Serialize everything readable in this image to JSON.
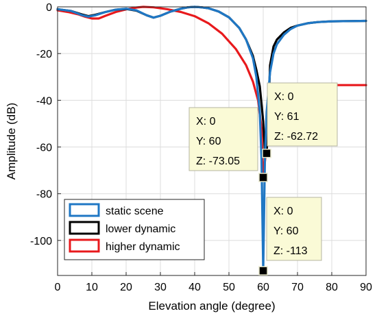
{
  "chart_data": {
    "type": "line",
    "xlabel": "Elevation angle (degree)",
    "ylabel": "Amplitude (dB)",
    "xlim": [
      0,
      90
    ],
    "ylim": [
      -115,
      0
    ],
    "x_ticks": [
      0,
      10,
      20,
      30,
      40,
      50,
      60,
      70,
      80,
      90
    ],
    "y_ticks": [
      0,
      -20,
      -40,
      -60,
      -80,
      -100
    ],
    "grid": true,
    "legend_placement": "bottom-left",
    "series": [
      {
        "name": "static scene",
        "color": "#1f77c4",
        "points": [
          [
            0,
            -1
          ],
          [
            4,
            -1.8
          ],
          [
            7,
            -3.5
          ],
          [
            9,
            -4.2
          ],
          [
            11,
            -3.6
          ],
          [
            14,
            -2.2
          ],
          [
            17,
            -1.2
          ],
          [
            20,
            -0.8
          ],
          [
            23,
            -1.5
          ],
          [
            26,
            -3.6
          ],
          [
            28,
            -4.6
          ],
          [
            30,
            -3.8
          ],
          [
            33,
            -2
          ],
          [
            36,
            -0.8
          ],
          [
            38,
            -0.2
          ],
          [
            40,
            0
          ],
          [
            42,
            -0.2
          ],
          [
            44,
            -0.6
          ],
          [
            47,
            -2
          ],
          [
            50,
            -4.5
          ],
          [
            53,
            -9
          ],
          [
            55,
            -14
          ],
          [
            57,
            -22
          ],
          [
            58,
            -30
          ],
          [
            59,
            -45
          ],
          [
            59.5,
            -65
          ],
          [
            60,
            -113
          ],
          [
            60.5,
            -65
          ],
          [
            61,
            -45
          ],
          [
            62,
            -28
          ],
          [
            63,
            -20
          ],
          [
            64,
            -16
          ],
          [
            66,
            -12
          ],
          [
            68,
            -9.5
          ],
          [
            70,
            -8
          ],
          [
            73,
            -7
          ],
          [
            76,
            -6.5
          ],
          [
            80,
            -6.2
          ],
          [
            85,
            -6.1
          ],
          [
            90,
            -6
          ]
        ]
      },
      {
        "name": "lower dynamic",
        "color": "#000000",
        "points": [
          [
            0,
            -1
          ],
          [
            4,
            -1.8
          ],
          [
            7,
            -3.2
          ],
          [
            9,
            -4
          ],
          [
            11,
            -3.4
          ],
          [
            14,
            -2.2
          ],
          [
            17,
            -1.2
          ],
          [
            20,
            -0.9
          ],
          [
            23,
            -1.6
          ],
          [
            26,
            -3.6
          ],
          [
            28,
            -4.6
          ],
          [
            30,
            -3.8
          ],
          [
            33,
            -2
          ],
          [
            36,
            -0.8
          ],
          [
            38,
            -0.2
          ],
          [
            40,
            0
          ],
          [
            42,
            -0.2
          ],
          [
            44,
            -0.6
          ],
          [
            47,
            -2
          ],
          [
            50,
            -4.5
          ],
          [
            53,
            -9
          ],
          [
            55,
            -14
          ],
          [
            57,
            -21
          ],
          [
            58,
            -27
          ],
          [
            59,
            -34
          ],
          [
            60,
            -49
          ],
          [
            60.5,
            -62
          ],
          [
            61,
            -62.72
          ],
          [
            61.5,
            -45
          ],
          [
            62,
            -25
          ],
          [
            63,
            -17
          ],
          [
            64,
            -14
          ],
          [
            66,
            -11
          ],
          [
            68,
            -9
          ],
          [
            70,
            -8
          ],
          [
            73,
            -7
          ],
          [
            76,
            -6.5
          ],
          [
            80,
            -6.2
          ],
          [
            85,
            -6.1
          ],
          [
            90,
            -6
          ]
        ]
      },
      {
        "name": "higher dynamic",
        "color": "#e8191c",
        "points": [
          [
            0,
            -1.5
          ],
          [
            3,
            -2.2
          ],
          [
            6,
            -3.2
          ],
          [
            8,
            -4.2
          ],
          [
            10,
            -5
          ],
          [
            12,
            -5
          ],
          [
            14,
            -3.8
          ],
          [
            17,
            -2.2
          ],
          [
            20,
            -1.1
          ],
          [
            23,
            -0.3
          ],
          [
            25,
            0
          ],
          [
            28,
            -0.2
          ],
          [
            32,
            -1
          ],
          [
            36,
            -2.2
          ],
          [
            40,
            -4
          ],
          [
            44,
            -7
          ],
          [
            48,
            -11.5
          ],
          [
            52,
            -18
          ],
          [
            55,
            -25
          ],
          [
            57,
            -32
          ],
          [
            58.5,
            -40
          ],
          [
            59.5,
            -52
          ],
          [
            60,
            -73.05
          ],
          [
            60.8,
            -62
          ],
          [
            61.5,
            -57
          ],
          [
            62,
            -54
          ],
          [
            62.5,
            -48
          ],
          [
            63,
            -45
          ],
          [
            63.5,
            -42
          ],
          [
            64,
            -40
          ],
          [
            64.5,
            -37
          ],
          [
            65,
            -34
          ],
          [
            66,
            -33.6
          ],
          [
            68,
            -33.5
          ],
          [
            70,
            -33.5
          ],
          [
            75,
            -33.5
          ],
          [
            80,
            -33.5
          ],
          [
            85,
            -33.5
          ],
          [
            90,
            -33.5
          ]
        ]
      }
    ],
    "datatips": [
      {
        "x_label": "X: 0",
        "y_label": "Y: 61",
        "z_label": "Z: -62.72",
        "marker_x": 61,
        "marker_y": -62.72
      },
      {
        "x_label": "X: 0",
        "y_label": "Y: 60",
        "z_label": "Z: -73.05",
        "marker_x": 60,
        "marker_y": -73.05
      },
      {
        "x_label": "X: 0",
        "y_label": "Y: 60",
        "z_label": "Z: -113",
        "marker_x": 60,
        "marker_y": -113
      }
    ]
  }
}
